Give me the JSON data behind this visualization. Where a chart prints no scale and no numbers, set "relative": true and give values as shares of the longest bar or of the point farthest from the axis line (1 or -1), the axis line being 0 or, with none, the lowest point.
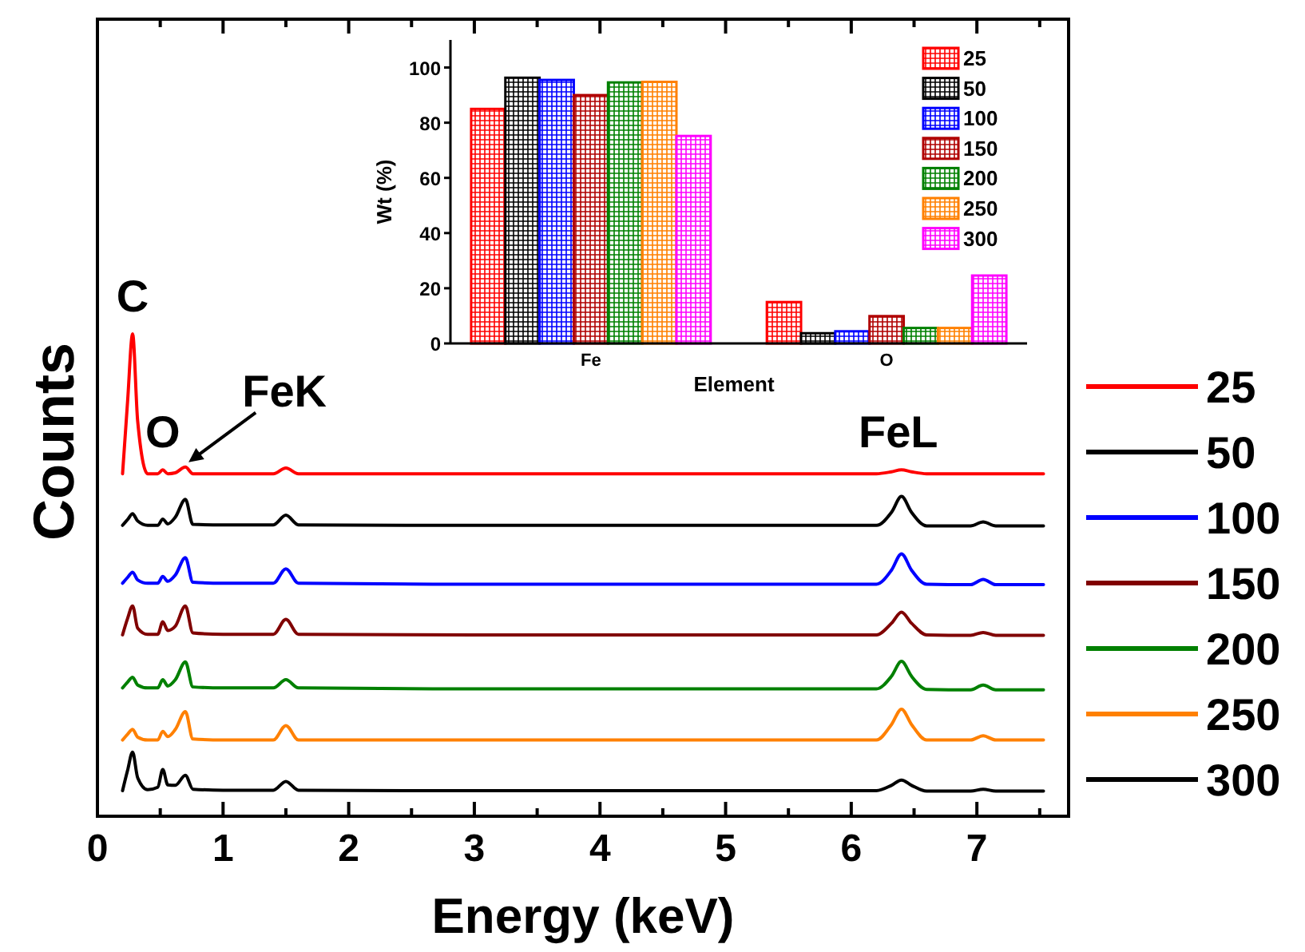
{
  "chart_data": [
    {
      "type": "line",
      "relative": true,
      "xlabel": "Energy (keV)",
      "ylabel": "Counts",
      "xlim": [
        0,
        7.73
      ],
      "xticks": [
        0,
        {
          "value": 0.5,
          "label": null
        },
        1,
        {
          "value": 1.5,
          "label": null
        },
        2,
        {
          "value": 2.5,
          "label": null
        },
        3,
        {
          "value": 3.5,
          "label": null
        },
        4,
        {
          "value": 4.5,
          "label": null
        },
        5,
        {
          "value": 5.5,
          "label": null
        },
        6,
        {
          "value": 6.5,
          "label": null
        },
        7,
        {
          "value": 7.5,
          "label": null
        }
      ],
      "legend": "right",
      "x": [
        0.2,
        0.24,
        0.28,
        0.32,
        0.4,
        0.48,
        0.52,
        0.56,
        0.62,
        0.7,
        0.76,
        1.0,
        1.4,
        1.5,
        1.6,
        3,
        5,
        6.2,
        6.32,
        6.4,
        6.48,
        6.6,
        6.95,
        7.05,
        7.15,
        7.53
      ],
      "annotations": [
        {
          "text": "C",
          "x": 0.28,
          "y": 1.0
        },
        {
          "text": "O",
          "x": 0.52,
          "y": 0.718
        },
        {
          "text": "FeK",
          "x": 0.7,
          "y": 0.724
        },
        {
          "text": "FeL",
          "x": 6.4,
          "y": 0.718
        }
      ],
      "series": [
        {
          "name": "25",
          "color": "#ff0000",
          "values": [
            0.71,
            0.86,
            1.0,
            0.82,
            0.71,
            0.71,
            0.718,
            0.71,
            0.712,
            0.724,
            0.71,
            0.71,
            0.71,
            0.722,
            0.71,
            0.71,
            0.71,
            0.71,
            0.714,
            0.718,
            0.714,
            0.71,
            0.71,
            0.71,
            0.71,
            0.71
          ]
        },
        {
          "name": "50",
          "color": "#000000",
          "values": [
            0.603,
            0.615,
            0.627,
            0.612,
            0.603,
            0.603,
            0.616,
            0.606,
            0.62,
            0.657,
            0.605,
            0.604,
            0.604,
            0.624,
            0.604,
            0.603,
            0.603,
            0.603,
            0.63,
            0.663,
            0.63,
            0.602,
            0.602,
            0.61,
            0.602,
            0.602
          ]
        },
        {
          "name": "100",
          "color": "#0000ff",
          "values": [
            0.483,
            0.495,
            0.506,
            0.49,
            0.483,
            0.483,
            0.497,
            0.487,
            0.5,
            0.536,
            0.485,
            0.483,
            0.483,
            0.513,
            0.483,
            0.481,
            0.481,
            0.481,
            0.51,
            0.544,
            0.51,
            0.481,
            0.48,
            0.491,
            0.48,
            0.48
          ]
        },
        {
          "name": "150",
          "color": "#800000",
          "values": [
            0.376,
            0.41,
            0.436,
            0.39,
            0.377,
            0.377,
            0.403,
            0.385,
            0.394,
            0.436,
            0.38,
            0.377,
            0.377,
            0.408,
            0.377,
            0.376,
            0.376,
            0.376,
            0.4,
            0.423,
            0.4,
            0.376,
            0.375,
            0.381,
            0.375,
            0.375
          ]
        },
        {
          "name": "200",
          "color": "#008000",
          "values": [
            0.266,
            0.278,
            0.288,
            0.272,
            0.266,
            0.266,
            0.283,
            0.27,
            0.283,
            0.32,
            0.268,
            0.266,
            0.266,
            0.283,
            0.266,
            0.264,
            0.264,
            0.264,
            0.29,
            0.321,
            0.29,
            0.263,
            0.262,
            0.272,
            0.262,
            0.262
          ]
        },
        {
          "name": "250",
          "color": "#ff8000",
          "values": [
            0.158,
            0.17,
            0.18,
            0.164,
            0.158,
            0.158,
            0.176,
            0.165,
            0.18,
            0.217,
            0.16,
            0.158,
            0.158,
            0.188,
            0.158,
            0.158,
            0.158,
            0.158,
            0.19,
            0.222,
            0.19,
            0.158,
            0.158,
            0.167,
            0.158,
            0.158
          ]
        },
        {
          "name": "300",
          "color": "#000000",
          "values": [
            0.053,
            0.095,
            0.133,
            0.08,
            0.055,
            0.06,
            0.097,
            0.065,
            0.064,
            0.085,
            0.056,
            0.054,
            0.054,
            0.072,
            0.054,
            0.053,
            0.053,
            0.053,
            0.064,
            0.075,
            0.064,
            0.052,
            0.052,
            0.056,
            0.052,
            0.052
          ]
        }
      ]
    },
    {
      "type": "bar",
      "xlabel": "Element",
      "ylabel": "Wt (%)",
      "categories": [
        "Fe",
        "O"
      ],
      "ylim": [
        0,
        110
      ],
      "yticks": [
        0,
        20,
        40,
        60,
        80,
        100
      ],
      "legend": "top right",
      "series": [
        {
          "name": "25",
          "color": "#ff0000",
          "values": [
            85,
            15
          ]
        },
        {
          "name": "50",
          "color": "#000000",
          "values": [
            96.3,
            3.7
          ]
        },
        {
          "name": "100",
          "color": "#0000ff",
          "values": [
            95.5,
            4.4
          ]
        },
        {
          "name": "150",
          "color": "#b00000",
          "values": [
            90,
            9.9
          ]
        },
        {
          "name": "200",
          "color": "#008000",
          "values": [
            94.6,
            5.6
          ]
        },
        {
          "name": "250",
          "color": "#ff8000",
          "values": [
            94.8,
            5.6
          ]
        },
        {
          "name": "300",
          "color": "#ff00ff",
          "values": [
            75.2,
            24.6
          ]
        }
      ]
    }
  ]
}
